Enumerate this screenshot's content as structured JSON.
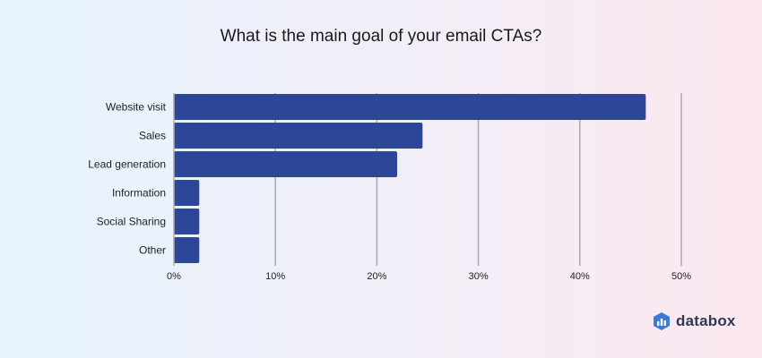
{
  "brand": {
    "name": "databox",
    "accent": "#3b7bd6"
  },
  "chart_data": {
    "type": "bar",
    "orientation": "horizontal",
    "title": "What is the main goal of your email CTAs?",
    "categories": [
      "Website visit",
      "Sales",
      "Lead generation",
      "Information",
      "Social Sharing",
      "Other"
    ],
    "values": [
      46.5,
      24.5,
      22,
      2.5,
      2.5,
      2.5
    ],
    "unit": "%",
    "xlim": [
      0,
      50
    ],
    "xticks": [
      0,
      10,
      20,
      30,
      40,
      50
    ],
    "xtick_labels": [
      "0%",
      "10%",
      "20%",
      "30%",
      "40%",
      "50%"
    ],
    "grid": true,
    "bar_color": "#2e4697"
  }
}
